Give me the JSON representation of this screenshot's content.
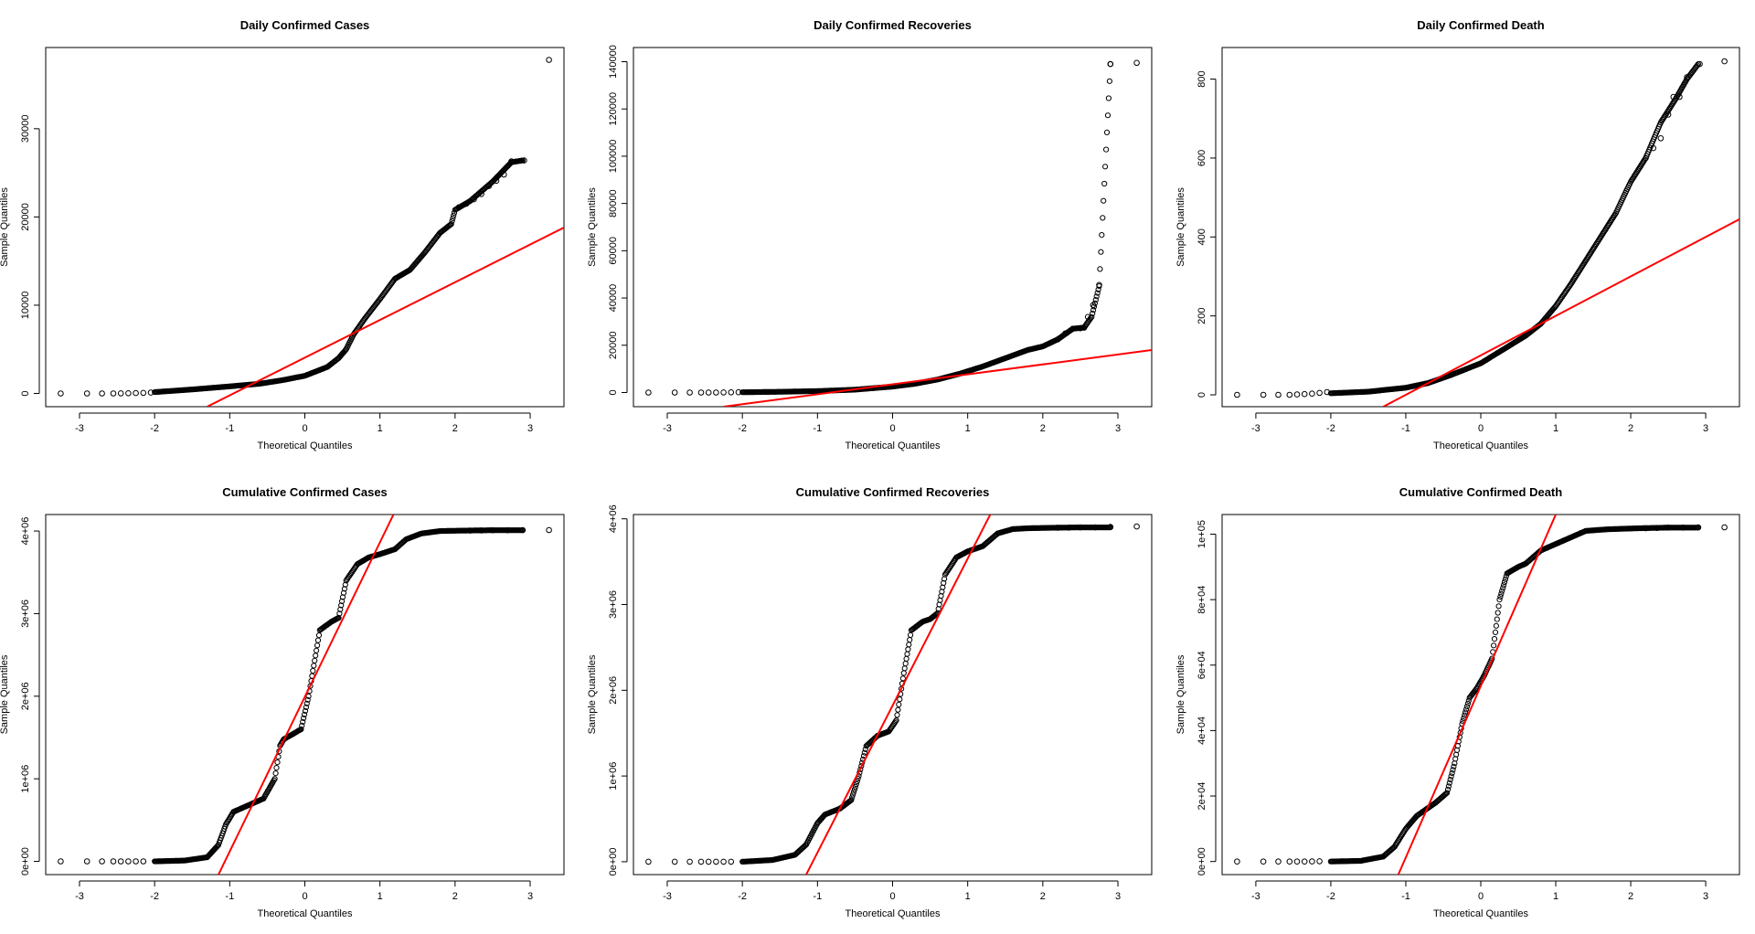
{
  "chart_data": [
    {
      "type": "scatter",
      "title": "Daily Confirmed Cases",
      "xlabel": "Theoretical Quantiles",
      "ylabel": "Sample Quantiles",
      "xlim": [
        -3.45,
        3.45
      ],
      "ylim": [
        -1500,
        39200
      ],
      "xticks": [
        -3,
        -2,
        -1,
        0,
        1,
        2,
        3
      ],
      "yticks": [
        0,
        10000,
        20000,
        30000
      ],
      "ytick_labels": [
        "0",
        "10000",
        "20000",
        "30000"
      ],
      "line_color": "#ff0000",
      "qqline": {
        "x": [
          -1.3,
          3.45
        ],
        "y": [
          -1500,
          18800
        ]
      },
      "sample": {
        "x": [
          -3.25,
          -2.9,
          -2.7,
          -2.5,
          -2.3,
          -2.0,
          -1.5,
          -1.0,
          -0.6,
          -0.3,
          0.0,
          0.3,
          0.45,
          0.55,
          0.65,
          0.8,
          1.0,
          1.2,
          1.4,
          1.6,
          1.8,
          1.95,
          2.0,
          2.2,
          2.5,
          2.75,
          2.9,
          3.25
        ],
        "y": [
          0,
          0,
          0,
          20,
          50,
          150,
          450,
          800,
          1100,
          1500,
          2000,
          3000,
          4000,
          5000,
          6700,
          8500,
          10700,
          13000,
          14000,
          16000,
          18200,
          19200,
          20800,
          21800,
          24000,
          26200,
          26400,
          37800
        ]
      },
      "outliers": {
        "x": [
          -3.25,
          -2.9,
          -2.7,
          -2.55,
          -2.45,
          -2.35,
          -2.25,
          -2.15,
          -2.05,
          2.05,
          2.15,
          2.25,
          2.35,
          2.45,
          2.55,
          2.65,
          2.75,
          2.92,
          3.25
        ],
        "y": [
          0,
          0,
          0,
          0,
          10,
          20,
          40,
          60,
          100,
          21100,
          21500,
          22000,
          22600,
          23500,
          24100,
          24800,
          26300,
          26400,
          37800
        ]
      }
    },
    {
      "type": "scatter",
      "title": "Daily Confirmed Recoveries",
      "xlabel": "Theoretical Quantiles",
      "ylabel": "Sample Quantiles",
      "xlim": [
        -3.45,
        3.45
      ],
      "ylim": [
        -6000,
        146000
      ],
      "xticks": [
        -3,
        -2,
        -1,
        0,
        1,
        2,
        3
      ],
      "yticks": [
        0,
        20000,
        40000,
        60000,
        80000,
        100000,
        120000,
        140000
      ],
      "ytick_labels": [
        "0",
        "20000",
        "40000",
        "60000",
        "80000",
        "100000",
        "120000",
        "140000"
      ],
      "line_color": "#ff0000",
      "qqline": {
        "x": [
          -2.25,
          3.45
        ],
        "y": [
          -6000,
          18000
        ]
      },
      "sample": {
        "x": [
          -3.25,
          -2.9,
          -2.7,
          -2.5,
          -2.3,
          -2.0,
          -1.5,
          -1.0,
          -0.5,
          0.0,
          0.3,
          0.6,
          0.9,
          1.2,
          1.5,
          1.8,
          2.0,
          2.2,
          2.4,
          2.55,
          2.65,
          2.75,
          2.9,
          3.25
        ],
        "y": [
          0,
          0,
          0,
          0,
          50,
          100,
          300,
          600,
          1200,
          2500,
          3700,
          5500,
          8000,
          11000,
          14500,
          18000,
          19500,
          22500,
          27000,
          27500,
          32000,
          45000,
          139000,
          139500
        ]
      },
      "outliers": {
        "x": [
          -3.25,
          -2.9,
          -2.7,
          -2.55,
          -2.45,
          -2.35,
          -2.25,
          -2.15,
          -2.05,
          2.2,
          2.3,
          2.4,
          2.5,
          2.55,
          2.6,
          2.67,
          2.75,
          2.9,
          3.25
        ],
        "y": [
          0,
          0,
          0,
          0,
          0,
          10,
          30,
          60,
          100,
          22500,
          25000,
          27000,
          27200,
          27400,
          32000,
          37000,
          45500,
          139000,
          139500
        ]
      }
    },
    {
      "type": "scatter",
      "title": "Daily Confirmed Death",
      "xlabel": "Theoretical Quantiles",
      "ylabel": "Sample Quantiles",
      "xlim": [
        -3.45,
        3.45
      ],
      "ylim": [
        -30,
        880
      ],
      "xticks": [
        -3,
        -2,
        -1,
        0,
        1,
        2,
        3
      ],
      "yticks": [
        0,
        200,
        400,
        600,
        800
      ],
      "ytick_labels": [
        "0",
        "200",
        "400",
        "600",
        "800"
      ],
      "line_color": "#ff0000",
      "qqline": {
        "x": [
          -1.3,
          3.45
        ],
        "y": [
          -30,
          445
        ]
      },
      "sample": {
        "x": [
          -3.25,
          -2.9,
          -2.7,
          -2.5,
          -2.3,
          -2.0,
          -1.5,
          -1.0,
          -0.7,
          -0.4,
          0.0,
          0.3,
          0.6,
          0.8,
          1.0,
          1.2,
          1.4,
          1.6,
          1.8,
          2.0,
          2.2,
          2.4,
          2.6,
          2.75,
          2.9,
          3.25
        ],
        "y": [
          0,
          0,
          0,
          0,
          1,
          4,
          8,
          18,
          30,
          50,
          80,
          115,
          150,
          180,
          225,
          280,
          340,
          400,
          460,
          540,
          600,
          690,
          750,
          800,
          838,
          845
        ]
      },
      "outliers": {
        "x": [
          -3.25,
          -2.9,
          -2.7,
          -2.55,
          -2.45,
          -2.35,
          -2.25,
          -2.15,
          -2.05,
          2.2,
          2.3,
          2.4,
          2.5,
          2.57,
          2.65,
          2.75,
          2.92,
          3.25
        ],
        "y": [
          0,
          0,
          0,
          0,
          1,
          2,
          3,
          5,
          7,
          600,
          625,
          650,
          710,
          755,
          755,
          805,
          838,
          845
        ]
      }
    },
    {
      "type": "scatter",
      "title": "Cumulative Confirmed Cases",
      "xlabel": "Theoretical Quantiles",
      "ylabel": "Sample Quantiles",
      "xlim": [
        -3.45,
        3.45
      ],
      "ylim": [
        -160000,
        4200000
      ],
      "xticks": [
        -3,
        -2,
        -1,
        0,
        1,
        2,
        3
      ],
      "yticks": [
        0,
        1000000,
        2000000,
        3000000,
        4000000
      ],
      "ytick_labels": [
        "0e+00",
        "1e+06",
        "2e+06",
        "3e+06",
        "4e+06"
      ],
      "line_color": "#ff0000",
      "qqline": {
        "x": [
          -1.15,
          1.18
        ],
        "y": [
          -160000,
          4200000
        ]
      },
      "sample": {
        "x": [
          -3.25,
          -2.9,
          -2.5,
          -2.0,
          -1.6,
          -1.3,
          -1.15,
          -1.05,
          -0.95,
          -0.75,
          -0.55,
          -0.4,
          -0.33,
          -0.28,
          -0.2,
          -0.05,
          0.05,
          0.2,
          0.35,
          0.45,
          0.55,
          0.7,
          0.85,
          1.0,
          1.2,
          1.35,
          1.55,
          1.8,
          2.1,
          2.5,
          2.9,
          3.25
        ],
        "y": [
          0,
          0,
          0,
          0,
          10000,
          50000,
          200000,
          450000,
          600000,
          680000,
          760000,
          1000000,
          1400000,
          1480000,
          1520000,
          1600000,
          2000000,
          2800000,
          2900000,
          2950000,
          3400000,
          3600000,
          3680000,
          3720000,
          3780000,
          3900000,
          3970000,
          4000000,
          4005000,
          4010000,
          4010000,
          4012000
        ]
      },
      "outliers": {
        "x": [
          -3.25,
          -2.9,
          -2.7,
          -2.55,
          -2.45,
          -2.35,
          -2.25,
          -2.15,
          2.2,
          2.35,
          2.5,
          2.7,
          2.9,
          3.25
        ],
        "y": [
          0,
          0,
          0,
          0,
          0,
          0,
          100,
          500,
          4005000,
          4008000,
          4010000,
          4010000,
          4011000,
          4012000
        ]
      }
    },
    {
      "type": "scatter",
      "title": "Cumulative Confirmed Recoveries",
      "xlabel": "Theoretical Quantiles",
      "ylabel": "Sample Quantiles",
      "xlim": [
        -3.45,
        3.45
      ],
      "ylim": [
        -150000,
        4050000
      ],
      "xticks": [
        -3,
        -2,
        -1,
        0,
        1,
        2,
        3
      ],
      "yticks": [
        0,
        1000000,
        2000000,
        3000000,
        4000000
      ],
      "ytick_labels": [
        "0e+00",
        "1e+06",
        "2e+06",
        "3e+06",
        "4e+06"
      ],
      "line_color": "#ff0000",
      "qqline": {
        "x": [
          -1.15,
          1.3
        ],
        "y": [
          -150000,
          4050000
        ]
      },
      "sample": {
        "x": [
          -3.25,
          -2.9,
          -2.5,
          -2.0,
          -1.6,
          -1.3,
          -1.15,
          -1.0,
          -0.9,
          -0.7,
          -0.55,
          -0.45,
          -0.35,
          -0.2,
          -0.05,
          0.05,
          0.15,
          0.25,
          0.4,
          0.5,
          0.6,
          0.7,
          0.85,
          1.0,
          1.2,
          1.4,
          1.6,
          1.8,
          2.1,
          2.5,
          2.9,
          3.25
        ],
        "y": [
          0,
          0,
          0,
          0,
          20000,
          80000,
          200000,
          450000,
          550000,
          620000,
          720000,
          1000000,
          1350000,
          1470000,
          1520000,
          1650000,
          2200000,
          2700000,
          2800000,
          2830000,
          2900000,
          3350000,
          3550000,
          3620000,
          3680000,
          3830000,
          3880000,
          3890000,
          3895000,
          3900000,
          3900000,
          3910000
        ]
      },
      "outliers": {
        "x": [
          -3.25,
          -2.9,
          -2.7,
          -2.55,
          -2.45,
          -2.35,
          -2.25,
          -2.15,
          2.2,
          2.35,
          2.5,
          2.7,
          2.9,
          3.25
        ],
        "y": [
          0,
          0,
          0,
          0,
          0,
          0,
          200,
          800,
          3895000,
          3898000,
          3900000,
          3900000,
          3905000,
          3910000
        ]
      }
    },
    {
      "type": "scatter",
      "title": "Cumulative Confirmed Death",
      "xlabel": "Theoretical Quantiles",
      "ylabel": "Sample Quantiles",
      "xlim": [
        -3.45,
        3.45
      ],
      "ylim": [
        -4000,
        106000
      ],
      "xticks": [
        -3,
        -2,
        -1,
        0,
        1,
        2,
        3
      ],
      "yticks": [
        0,
        20000,
        40000,
        60000,
        80000,
        100000
      ],
      "ytick_labels": [
        "0e+00",
        "2e+04",
        "4e+04",
        "6e+04",
        "8e+04",
        "1e+05"
      ],
      "line_color": "#ff0000",
      "qqline": {
        "x": [
          -1.1,
          1.0
        ],
        "y": [
          -4000,
          106000
        ]
      },
      "sample": {
        "x": [
          -3.25,
          -2.9,
          -2.5,
          -2.0,
          -1.6,
          -1.3,
          -1.15,
          -1.0,
          -0.85,
          -0.6,
          -0.45,
          -0.35,
          -0.25,
          -0.15,
          -0.05,
          0.05,
          0.15,
          0.25,
          0.35,
          0.5,
          0.6,
          0.8,
          1.0,
          1.2,
          1.4,
          1.7,
          2.1,
          2.5,
          2.9,
          3.25
        ],
        "y": [
          0,
          0,
          0,
          0,
          200,
          1500,
          4500,
          10000,
          14000,
          18000,
          21000,
          30000,
          42000,
          50000,
          53000,
          57000,
          62000,
          80000,
          88000,
          90000,
          91000,
          95000,
          97000,
          99000,
          101000,
          101500,
          101800,
          102000,
          102000,
          102100
        ]
      },
      "outliers": {
        "x": [
          -3.25,
          -2.9,
          -2.7,
          -2.55,
          -2.45,
          -2.35,
          -2.25,
          -2.15,
          2.2,
          2.35,
          2.5,
          2.7,
          2.9,
          3.25
        ],
        "y": [
          0,
          0,
          0,
          0,
          0,
          0,
          20,
          80,
          101800,
          101900,
          102000,
          102000,
          102050,
          102100
        ]
      }
    }
  ]
}
